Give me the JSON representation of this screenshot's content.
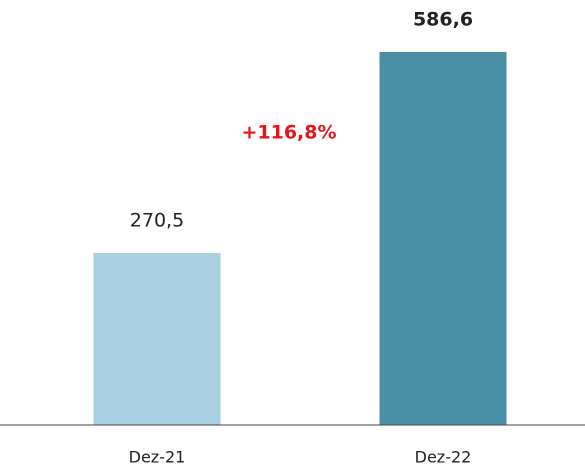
{
  "chart_data": {
    "type": "bar",
    "categories": [
      "Dez-21",
      "Dez-22"
    ],
    "values": [
      270.5,
      586.6
    ],
    "value_labels": [
      "270,5",
      "586,6"
    ],
    "colors": [
      "#a9d0e0",
      "#4a8fa6"
    ],
    "annotation": "+116,8%"
  }
}
